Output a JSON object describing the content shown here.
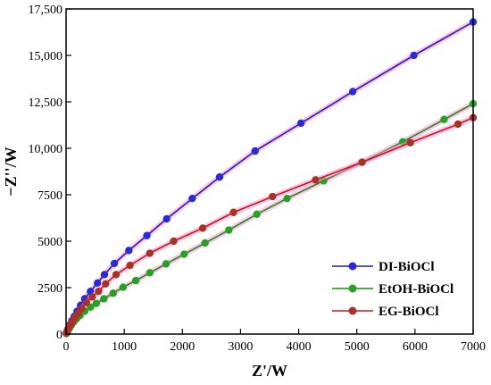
{
  "chart_data": {
    "type": "line",
    "xlabel": "Z'/W",
    "ylabel": "−Z''/W",
    "xlim": [
      0,
      7000
    ],
    "ylim": [
      0,
      17500
    ],
    "x_ticks": [
      0,
      1000,
      2000,
      3000,
      4000,
      5000,
      6000,
      7000
    ],
    "y_ticks": [
      0,
      2500,
      5000,
      7500,
      10000,
      12500,
      15000,
      17500
    ],
    "x_tick_labels": [
      "0",
      "1000",
      "2000",
      "3000",
      "4000",
      "5000",
      "6000",
      "7000"
    ],
    "y_tick_labels": [
      "0",
      "2500",
      "5000",
      "7500",
      "10,000",
      "12,500",
      "15,000",
      "17,500"
    ],
    "grid": false,
    "legend_position": "bottom-right",
    "series": [
      {
        "name": "DI-BiOCl",
        "color": "#1f1fb4",
        "marker_color": "#2a2ad6",
        "x": [
          5,
          20,
          40,
          65,
          100,
          140,
          190,
          250,
          320,
          420,
          540,
          660,
          830,
          1080,
          1390,
          1730,
          2170,
          2640,
          3250,
          4040,
          4930,
          5980,
          7000
        ],
        "y": [
          50,
          150,
          300,
          500,
          720,
          950,
          1230,
          1550,
          1900,
          2300,
          2750,
          3200,
          3800,
          4500,
          5300,
          6200,
          7300,
          8450,
          9850,
          11350,
          13050,
          15000,
          16800
        ]
      },
      {
        "name": "EtOH-BiOCl",
        "color": "#1a8a1a",
        "marker_color": "#28a028",
        "x": [
          5,
          15,
          35,
          60,
          90,
          130,
          180,
          240,
          320,
          420,
          520,
          650,
          810,
          980,
          1200,
          1440,
          1720,
          2030,
          2390,
          2800,
          3280,
          3800,
          4430,
          5090,
          5790,
          6500,
          7000
        ],
        "y": [
          30,
          100,
          200,
          330,
          480,
          640,
          820,
          1000,
          1230,
          1450,
          1650,
          1900,
          2200,
          2520,
          2880,
          3300,
          3780,
          4300,
          4900,
          5600,
          6450,
          7300,
          8250,
          9250,
          10350,
          11550,
          12400
        ]
      },
      {
        "name": "EG-BiOCl",
        "color": "#c01a1a",
        "marker_color": "#a83228",
        "x": [
          5,
          15,
          30,
          55,
          85,
          120,
          160,
          210,
          270,
          350,
          450,
          560,
          680,
          860,
          1100,
          1440,
          1850,
          2350,
          2880,
          3550,
          4290,
          5090,
          5920,
          6740,
          7000
        ],
        "y": [
          50,
          150,
          260,
          400,
          560,
          740,
          920,
          1130,
          1380,
          1700,
          2000,
          2300,
          2700,
          3200,
          3700,
          4350,
          5000,
          5700,
          6550,
          7400,
          8300,
          9250,
          10300,
          11300,
          11650
        ]
      }
    ]
  }
}
